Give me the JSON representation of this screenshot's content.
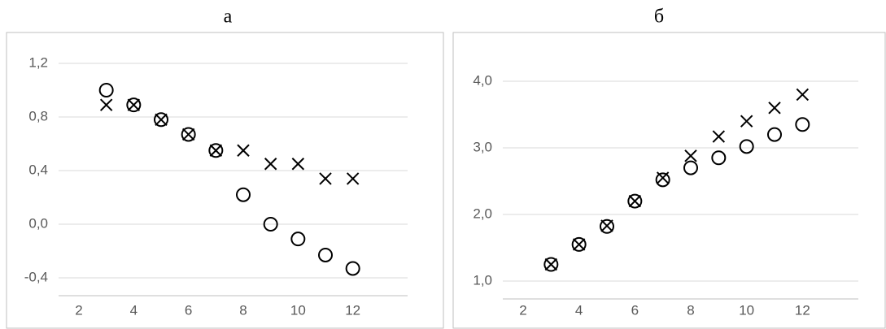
{
  "chart_data": [
    {
      "type": "scatter",
      "title": "а",
      "xlim": [
        2,
        14
      ],
      "xticks": [
        2,
        4,
        6,
        8,
        10,
        12
      ],
      "ylim": [
        -0.4,
        1.2
      ],
      "yticks": [
        {
          "value": -0.4,
          "label": "-0,4"
        },
        {
          "value": 0,
          "label": "0,0"
        },
        {
          "value": 0.4,
          "label": "0,4"
        },
        {
          "value": 0.8,
          "label": "0,8"
        },
        {
          "value": 1.2,
          "label": "1,2"
        }
      ],
      "grid": true,
      "series": [
        {
          "marker": "circle",
          "color": "#000000",
          "x": [
            3,
            4,
            5,
            6,
            7,
            8,
            9,
            10,
            11,
            12
          ],
          "values": [
            1.0,
            0.89,
            0.78,
            0.67,
            0.55,
            0.22,
            0.0,
            -0.11,
            -0.23,
            -0.33
          ]
        },
        {
          "marker": "cross",
          "color": "#000000",
          "x": [
            3,
            4,
            5,
            6,
            7,
            8,
            9,
            10,
            11,
            12
          ],
          "values": [
            0.89,
            0.89,
            0.78,
            0.67,
            0.55,
            0.55,
            0.45,
            0.45,
            0.34,
            0.34
          ]
        }
      ]
    },
    {
      "type": "scatter",
      "title": "б",
      "xlim": [
        2,
        14
      ],
      "xticks": [
        2,
        4,
        6,
        8,
        10,
        12
      ],
      "ylim": [
        1.0,
        4.0
      ],
      "yticks": [
        {
          "value": 1,
          "label": "1,0"
        },
        {
          "value": 2,
          "label": "2,0"
        },
        {
          "value": 3,
          "label": "3,0"
        },
        {
          "value": 4,
          "label": "4,0"
        }
      ],
      "grid": true,
      "series": [
        {
          "marker": "circle",
          "color": "#000000",
          "x": [
            3,
            4,
            5,
            6,
            7,
            8,
            9,
            10,
            11,
            12
          ],
          "values": [
            1.25,
            1.55,
            1.82,
            2.2,
            2.52,
            2.7,
            2.85,
            3.02,
            3.2,
            3.35
          ]
        },
        {
          "marker": "cross",
          "color": "#000000",
          "x": [
            3,
            4,
            5,
            6,
            7,
            8,
            9,
            10,
            11,
            12
          ],
          "values": [
            1.25,
            1.55,
            1.83,
            2.2,
            2.55,
            2.88,
            3.17,
            3.4,
            3.6,
            3.8
          ]
        }
      ]
    }
  ]
}
